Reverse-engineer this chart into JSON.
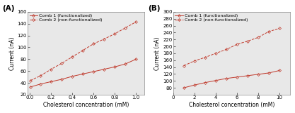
{
  "panel_A": {
    "label": "(A)",
    "comb1_x": [
      0.005,
      0.1,
      0.2,
      0.3,
      0.4,
      0.5,
      0.6,
      0.7,
      0.8,
      0.9,
      1.0
    ],
    "comb1_y": [
      33,
      38,
      42,
      46,
      51,
      55,
      59,
      63,
      67,
      72,
      80
    ],
    "comb2_x": [
      0.005,
      0.1,
      0.2,
      0.3,
      0.4,
      0.5,
      0.6,
      0.7,
      0.8,
      0.9,
      1.0
    ],
    "comb2_y": [
      44,
      52,
      63,
      73,
      84,
      95,
      106,
      114,
      123,
      133,
      143
    ],
    "xlim": [
      -0.02,
      1.08
    ],
    "ylim": [
      20,
      160
    ],
    "xticks": [
      0.0,
      0.2,
      0.4,
      0.6,
      0.8,
      1.0
    ],
    "yticks": [
      20,
      40,
      60,
      80,
      100,
      120,
      140,
      160
    ],
    "xlabel": "Cholesterol concentration (mM)",
    "ylabel": "Current (nA)"
  },
  "panel_B": {
    "label": "(B)",
    "comb1_x": [
      1,
      2,
      3,
      4,
      5,
      6,
      7,
      8,
      9,
      10
    ],
    "comb1_y": [
      80,
      88,
      95,
      101,
      107,
      111,
      115,
      119,
      123,
      130
    ],
    "comb2_x": [
      1,
      2,
      3,
      4,
      5,
      6,
      7,
      8,
      9,
      10
    ],
    "comb2_y": [
      144,
      158,
      168,
      180,
      191,
      206,
      215,
      226,
      243,
      252
    ],
    "xlim": [
      0.0,
      11.0
    ],
    "ylim": [
      60,
      300
    ],
    "xticks": [
      0,
      2,
      4,
      6,
      8,
      10
    ],
    "yticks": [
      80,
      100,
      120,
      140,
      160,
      180,
      200,
      220,
      240,
      260,
      280,
      300
    ],
    "xlabel": "Cholesterol concentration (mM)",
    "ylabel": "Current (nA)"
  },
  "legend_comb1": "Comb 1 (functionalized)",
  "legend_comb2": "Comb 2 (non-functionalized)",
  "line_color": "#c0392b",
  "markersize": 2.0,
  "linewidth": 0.7,
  "label_fontsize": 5.5,
  "tick_fontsize": 5.0,
  "legend_fontsize": 4.5,
  "bg_color": "#e8e8e8"
}
